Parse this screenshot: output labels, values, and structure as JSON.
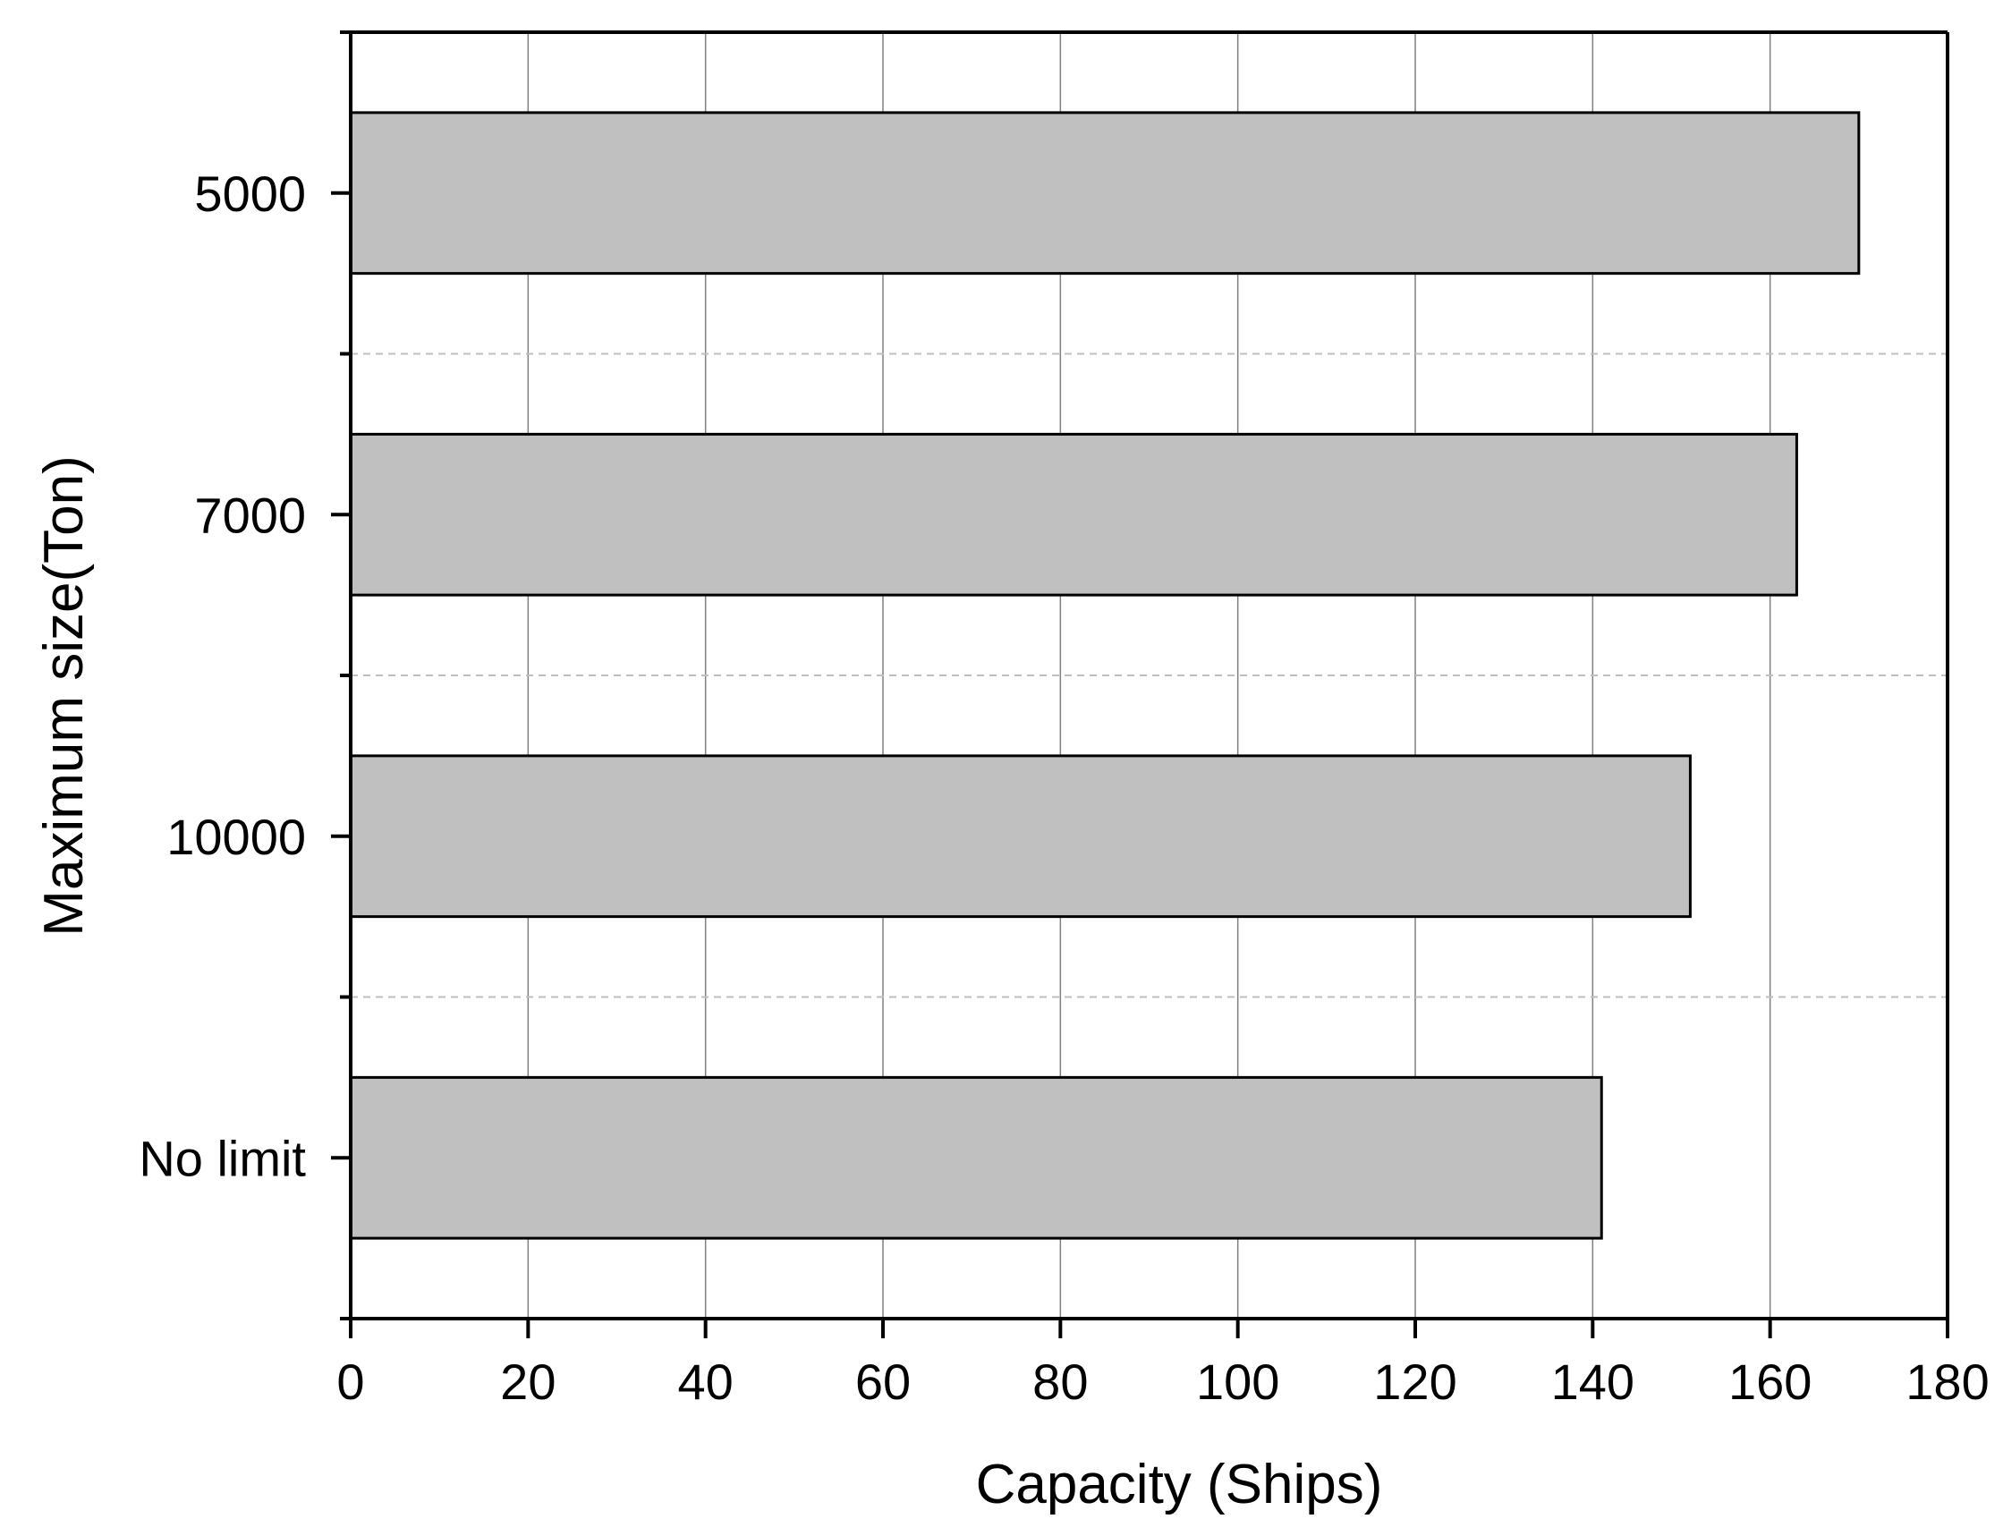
{
  "chart_data": {
    "type": "bar",
    "orientation": "horizontal",
    "categories": [
      "5000",
      "7000",
      "10000",
      "No limit"
    ],
    "values": [
      170,
      163,
      151,
      141
    ],
    "xlabel": "Capacity (Ships)",
    "ylabel": "Maximum size(Ton)",
    "xlim": [
      0,
      180
    ],
    "xticks": [
      0,
      20,
      40,
      60,
      80,
      100,
      120,
      140,
      160,
      180
    ],
    "grid": {
      "vertical": true,
      "horizontal_between_categories": true,
      "horizontal_style": "dashed"
    },
    "colors": {
      "bar_fill": "#c0c0c0",
      "bar_edge": "#000000",
      "grid_major": "#808080",
      "grid_minor": "#bfbfbf",
      "axis": "#000000"
    }
  }
}
